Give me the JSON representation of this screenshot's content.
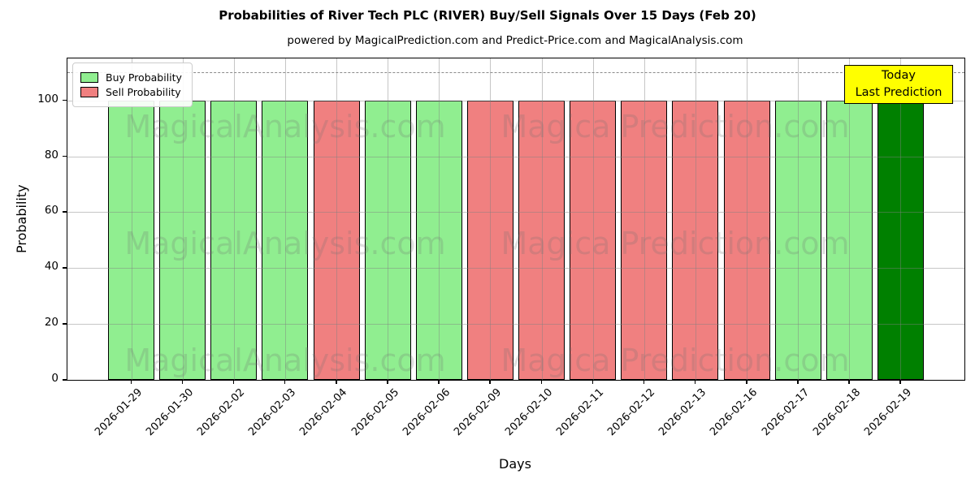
{
  "figure": {
    "title": "Probabilities of River Tech PLC (RIVER) Buy/Sell Signals Over 15 Days (Feb 20)",
    "subtitle": "powered by MagicalPrediction.com and Predict-Price.com and MagicalAnalysis.com",
    "xlabel": "Days",
    "ylabel": "Probability"
  },
  "legend": {
    "items": [
      {
        "label": "Buy Probability",
        "color": "#90EE90"
      },
      {
        "label": "Sell Probability",
        "color": "#F08080"
      }
    ]
  },
  "annotation": {
    "lines": [
      "Today",
      "Last Prediction"
    ],
    "bg": "#FFFF00"
  },
  "watermarks": {
    "left": "MagicalAnalysis.com",
    "right": "Magica Prediction.com"
  },
  "chart_data": {
    "type": "bar",
    "title": "Probabilities of River Tech PLC (RIVER) Buy/Sell Signals Over 15 Days (Feb 20)",
    "xlabel": "Days",
    "ylabel": "Probability",
    "categories": [
      "2026-01-29",
      "2026-01-30",
      "2026-02-02",
      "2026-02-03",
      "2026-02-04",
      "2026-02-05",
      "2026-02-06",
      "2026-02-09",
      "2026-02-10",
      "2026-02-11",
      "2026-02-12",
      "2026-02-13",
      "2026-02-16",
      "2026-02-17",
      "2026-02-18",
      "2026-02-19"
    ],
    "values": [
      100,
      100,
      100,
      100,
      100,
      100,
      100,
      100,
      100,
      100,
      100,
      100,
      100,
      100,
      100,
      100
    ],
    "kinds": [
      "buy",
      "buy",
      "buy",
      "buy",
      "sell",
      "buy",
      "buy",
      "sell",
      "sell",
      "sell",
      "sell",
      "sell",
      "sell",
      "buy",
      "buy",
      "today"
    ],
    "colors": {
      "buy": "#90EE90",
      "sell": "#F08080",
      "today": "#008000"
    },
    "yticks": [
      0,
      20,
      40,
      60,
      80,
      100
    ],
    "ylim": [
      0,
      115
    ],
    "dashed_line_y": 110,
    "grid": true,
    "legend_position": "upper left"
  }
}
